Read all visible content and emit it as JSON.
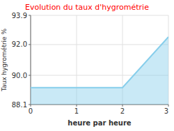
{
  "chart_data": {
    "type": "area",
    "title": "Evolution du taux d'hygrométrie",
    "title_color": "#ff0000",
    "x_label": "heure par heure",
    "y_label": "Taux hygrométrie %",
    "x": [
      0,
      2,
      3
    ],
    "values": [
      89.2,
      89.2,
      92.5
    ],
    "color": "#87ceeb",
    "xlim": [
      0,
      3
    ],
    "ylim": [
      88.1,
      93.9
    ],
    "xticks": [
      0,
      1,
      2,
      3
    ],
    "yticks": [
      88.1,
      {
        "value": 90.0,
        "label": "90.0"
      },
      {
        "value": 92.0,
        "label": "92.0"
      },
      93.9
    ],
    "grid": true
  }
}
